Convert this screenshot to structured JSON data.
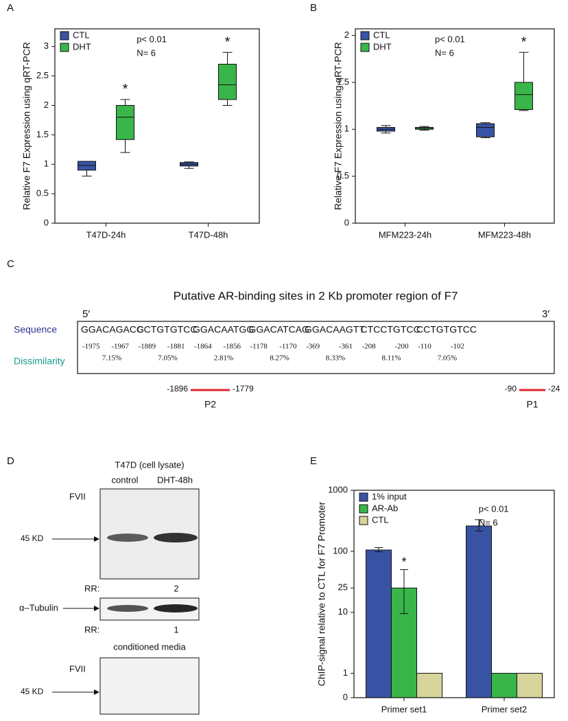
{
  "chart_data": [
    {
      "type": "box",
      "panel_label": "A",
      "y_label": "Relative F7 Expression using qRT-PCR",
      "categories": [
        "T47D-24h",
        "T47D-48h"
      ],
      "annotations": [
        "p< 0.01",
        "N= 6"
      ],
      "ylim": [
        0,
        3.3
      ],
      "yticks": [
        0,
        0.5,
        1,
        1.5,
        2,
        2.5,
        3
      ],
      "legend": "upper left",
      "series": [
        {
          "name": "CTL",
          "color": "#3953a4",
          "values": [
            {
              "min": 0.8,
              "q1": 0.9,
              "median": 0.98,
              "q3": 1.05,
              "max": 1.05
            },
            {
              "min": 0.93,
              "q1": 0.97,
              "median": 1.0,
              "q3": 1.03,
              "max": 1.04
            }
          ]
        },
        {
          "name": "DHT",
          "color": "#39b54a",
          "significance": [
            "*",
            "*"
          ],
          "values": [
            {
              "min": 1.2,
              "q1": 1.42,
              "median": 1.8,
              "q3": 2.0,
              "max": 2.1
            },
            {
              "min": 2.0,
              "q1": 2.1,
              "median": 2.35,
              "q3": 2.7,
              "max": 2.9
            }
          ]
        }
      ]
    },
    {
      "type": "box",
      "panel_label": "B",
      "y_label": "Relative F7 Expression using qRT-PCR",
      "categories": [
        "MFM223-24h",
        "MFM223-48h"
      ],
      "annotations": [
        "p< 0.01",
        "N= 6"
      ],
      "ylim": [
        0,
        2.07
      ],
      "yticks": [
        0,
        0.5,
        1,
        1.5,
        2
      ],
      "legend": "upper left",
      "series": [
        {
          "name": "CTL",
          "color": "#3953a4",
          "values": [
            {
              "min": 0.96,
              "q1": 0.98,
              "median": 1.0,
              "q3": 1.02,
              "max": 1.04
            },
            {
              "min": 0.91,
              "q1": 0.92,
              "median": 1.02,
              "q3": 1.06,
              "max": 1.07
            }
          ]
        },
        {
          "name": "DHT",
          "color": "#39b54a",
          "significance": [
            null,
            "*"
          ],
          "values": [
            {
              "min": 0.99,
              "q1": 1.0,
              "median": 1.01,
              "q3": 1.02,
              "max": 1.03
            },
            {
              "min": 1.2,
              "q1": 1.21,
              "median": 1.37,
              "q3": 1.5,
              "max": 1.82
            }
          ]
        }
      ]
    },
    {
      "type": "bar",
      "panel_label": "E",
      "y_label": "ChIP-signal relative to CTL for F7 Promoter",
      "yscale": "symlog",
      "categories": [
        "Primer set1",
        "Primer set2"
      ],
      "annotations": [
        "p< 0.01",
        "N= 6"
      ],
      "ylim": [
        0,
        1000
      ],
      "yticks": [
        0,
        1,
        10,
        25,
        100,
        1000
      ],
      "legend": "upper left",
      "series": [
        {
          "name": "1% input",
          "color": "#3953a4",
          "values": [
            105,
            260
          ],
          "lower": [
            98,
            215
          ],
          "upper": [
            115,
            330
          ]
        },
        {
          "name": "AR-Ab",
          "color": "#39b54a",
          "values": [
            25,
            1
          ],
          "lower": [
            9.5,
            null
          ],
          "upper": [
            50,
            null
          ],
          "significance": [
            "*",
            null
          ]
        },
        {
          "name": "CTL",
          "color": "#d6d39b",
          "values": [
            1,
            1
          ]
        }
      ]
    }
  ],
  "sequence_panel": {
    "panel_label": "C",
    "title": "Putative AR-binding sites in 2 Kb promoter region of F7",
    "start_label": "5′",
    "end_label": "3′",
    "row_labels": [
      "Sequence",
      "Dissimilarity"
    ],
    "sites": [
      {
        "sequence": "GGACAGACG",
        "start": -1975,
        "end": -1967,
        "dissimilarity": "7.15%"
      },
      {
        "sequence": "CCTGTGTCC",
        "start": -1889,
        "end": -1881,
        "dissimilarity": "7.05%"
      },
      {
        "sequence": "GGACAATGG",
        "start": -1864,
        "end": -1856,
        "dissimilarity": "2.81%"
      },
      {
        "sequence": "GGACATCAG",
        "start": -1178,
        "end": -1170,
        "dissimilarity": "8.27%"
      },
      {
        "sequence": "GGACAAGTT",
        "start": -369,
        "end": -361,
        "dissimilarity": "8.33%"
      },
      {
        "sequence": "CTCCTGTCC",
        "start": -208,
        "end": -200,
        "dissimilarity": "8.11%"
      },
      {
        "sequence": "CCTGTGTCC",
        "start": -110,
        "end": -102,
        "dissimilarity": "7.05%"
      }
    ],
    "primers": [
      {
        "name": "P2",
        "start": -1896,
        "end": -1779
      },
      {
        "name": "P1",
        "start": -90,
        "end": -24
      }
    ]
  },
  "blot_panel": {
    "panel_label": "D",
    "title": "T47D (cell lysate)",
    "lanes": [
      "control",
      "DHT-48h"
    ],
    "blots": [
      {
        "label": "FVII",
        "marker": "45 KD",
        "rr_label": "RR:",
        "rr": 2
      },
      {
        "label": "α–Tubulin",
        "rr_label": "RR:",
        "rr": 1
      },
      {
        "heading": "conditioned media",
        "label": "FVII",
        "marker": "45 KD"
      }
    ]
  }
}
